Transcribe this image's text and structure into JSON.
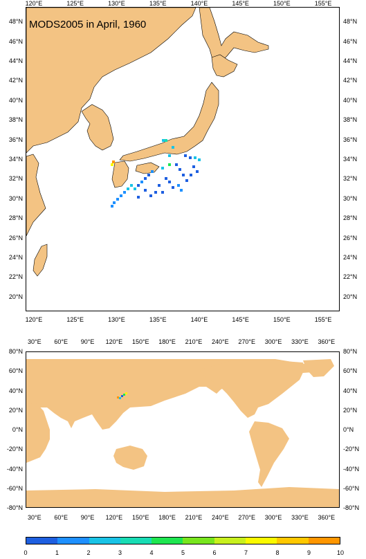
{
  "title": "MODS2005 in April, 1960",
  "colors": {
    "land": "#f3c383",
    "ocean": "#ffffff"
  },
  "regional_map": {
    "lon_range": [
      119,
      157
    ],
    "lat_range": [
      18.5,
      49.5
    ],
    "lon_ticks": [
      "120°E",
      "125°E",
      "130°E",
      "135°E",
      "140°E",
      "145°E",
      "150°E",
      "155°E"
    ],
    "lat_ticks": [
      "48°N",
      "46°N",
      "44°N",
      "42°N",
      "40°N",
      "38°N",
      "36°N",
      "34°N",
      "32°N",
      "30°N",
      "28°N",
      "26°N",
      "24°N",
      "22°N",
      "20°N"
    ]
  },
  "global_map": {
    "lon_range": [
      20,
      375
    ],
    "lat_range": [
      -80,
      80
    ],
    "lon_ticks": [
      "30°E",
      "60°E",
      "90°E",
      "120°E",
      "150°E",
      "180°E",
      "210°E",
      "240°E",
      "270°E",
      "300°E",
      "330°E",
      "360°E"
    ],
    "lat_ticks": [
      "80°N",
      "60°N",
      "40°N",
      "20°N",
      "0°N",
      "-20°N",
      "-40°N",
      "-60°N",
      "-80°N"
    ]
  },
  "colorbar": {
    "labels": [
      "0",
      "1",
      "2",
      "3",
      "4",
      "5",
      "6",
      "7",
      "8",
      "9",
      "10"
    ],
    "colors": [
      "#1e5fe0",
      "#1e90ff",
      "#19c3e6",
      "#18dcb4",
      "#1ee650",
      "#78e61e",
      "#c8f01e",
      "#fafa00",
      "#ffc800",
      "#ff9600"
    ]
  }
}
